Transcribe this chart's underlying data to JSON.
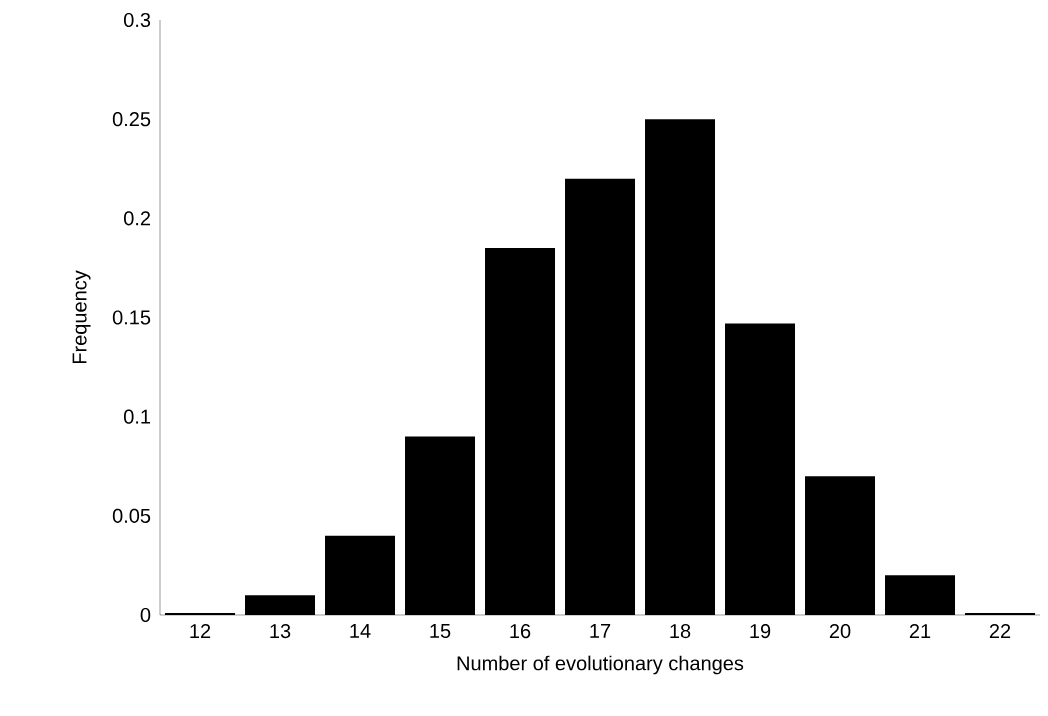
{
  "chart_data": {
    "type": "bar",
    "xlabel": "Number of evolutionary changes",
    "ylabel": "Frequency",
    "categories": [
      "12",
      "13",
      "14",
      "15",
      "16",
      "17",
      "18",
      "19",
      "20",
      "21",
      "22"
    ],
    "values": [
      0.001,
      0.01,
      0.04,
      0.09,
      0.185,
      0.22,
      0.25,
      0.147,
      0.07,
      0.02,
      0.001
    ],
    "color": "#000000",
    "ylim": [
      0,
      0.3
    ],
    "yticks": [
      0,
      0.05,
      0.1,
      0.15,
      0.2,
      0.25,
      0.3
    ],
    "grid": false
  }
}
